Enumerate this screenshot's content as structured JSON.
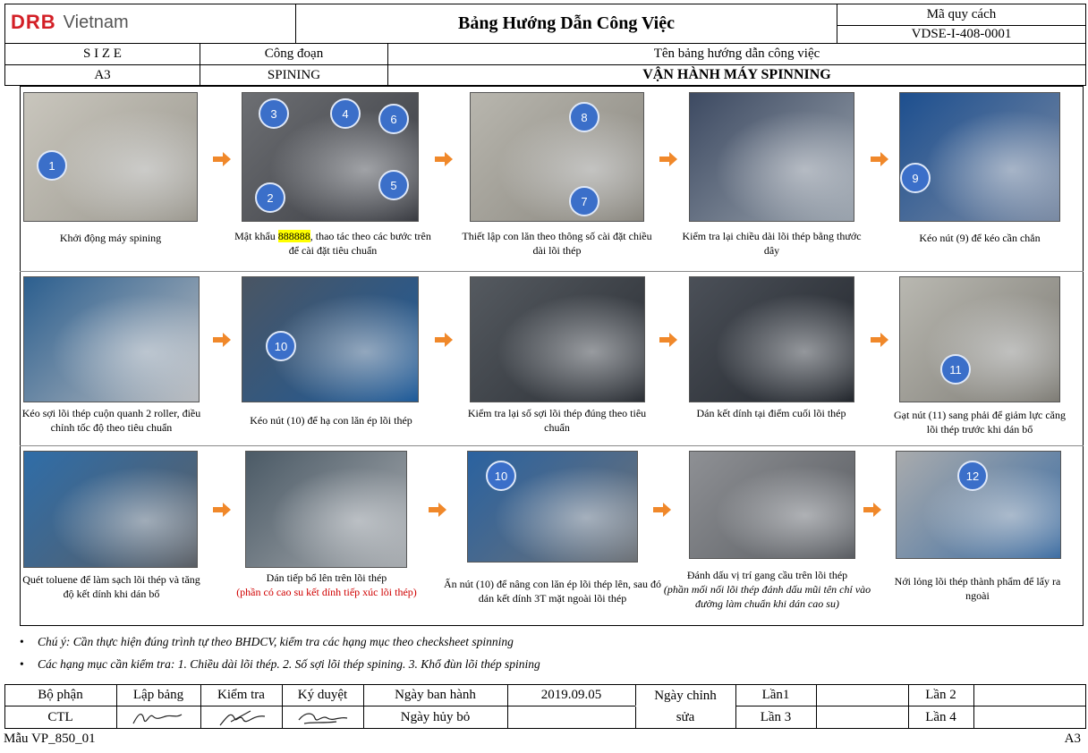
{
  "header": {
    "logo_brand": "DRB",
    "logo_text": "Vietnam",
    "title": "Bảng Hướng Dẫn Công Việc",
    "spec_code_label": "Mã quy cách",
    "spec_code_value": "VDSE-I-408-0001",
    "size_label": "S I Z E",
    "size_value": "A3",
    "process_label": "Công đoạn",
    "process_value": "SPINING",
    "guide_name_label": "Tên bảng hướng dẫn công việc",
    "guide_name_value": "VẬN HÀNH MÁY SPINNING"
  },
  "steps": [
    {
      "caption": "Khởi động máy spining",
      "badges": [
        "1"
      ]
    },
    {
      "caption_pre": "Mật khẩu ",
      "caption_hl": "888888",
      "caption_post": ", thao tác theo các bước trên để cài đặt tiêu chuẩn",
      "badges": [
        "3",
        "4",
        "6",
        "2",
        "5"
      ]
    },
    {
      "caption": "Thiết lập con lăn theo thông số cài đặt chiều dài lõi thép",
      "badges": [
        "8",
        "7"
      ]
    },
    {
      "caption": "Kiểm tra lại chiều dài lõi thép bằng thước dây",
      "badges": []
    },
    {
      "caption": "Kéo nút (9) để kéo cần chắn",
      "badges": [
        "9"
      ]
    },
    {
      "caption": "Kéo sợi lõi thép cuộn quanh 2 roller, điều chỉnh tốc độ theo tiêu chuẩn",
      "badges": []
    },
    {
      "caption": "Kéo nút (10) để hạ con lăn ép lõi thép",
      "badges": [
        "10"
      ]
    },
    {
      "caption": "Kiểm tra lại số sợi lõi thép đúng theo tiêu chuẩn",
      "badges": []
    },
    {
      "caption": "Dán kết dính tại điểm cuối lõi thép",
      "badges": []
    },
    {
      "caption": "Gạt nút (11) sang phải để giảm lực căng lõi thép trước khi dán bổ",
      "badges": [
        "11"
      ]
    },
    {
      "caption": "Quét toluene để làm sạch lõi thép và tăng độ kết dính khi dán bổ",
      "badges": []
    },
    {
      "caption": "Dán tiếp bổ lên trên lõi thép",
      "caption_red": "(phần có cao su kết dính tiếp xúc lõi thép)",
      "badges": []
    },
    {
      "caption": "Ấn nút (10) để nâng con lăn ép lõi thép lên, sau đó dán kết dính 3T mặt ngoài lõi thép",
      "badges": [
        "10"
      ]
    },
    {
      "caption": "Đánh dấu vị trí gang cầu trên lõi thép",
      "caption_italic": "(phần mối nối lõi thép đánh dấu mũi tên chỉ vào đường làm chuẩn khi dán cao su)",
      "badges": []
    },
    {
      "caption": "Nới lỏng lõi thép thành phẩm để lấy ra ngoài",
      "badges": [
        "12"
      ]
    }
  ],
  "notes": [
    "Chú ý: Cần thực hiện đúng trình tự theo BHDCV, kiểm tra các hạng mục theo checksheet spinning",
    "Các hạng mục cần kiểm tra: 1. Chiều dài lõi thép. 2. Số sợi lõi thép spining. 3. Khổ đùn lõi thép spining"
  ],
  "footer": {
    "dept_label": "Bộ phận",
    "dept_value": "CTL",
    "prepared_label": "Lập bảng",
    "checked_label": "Kiểm tra",
    "approved_label": "Ký duyệt",
    "issue_date_label": "Ngày ban hành",
    "issue_date_value": "2019.09.05",
    "cancel_date_label": "Ngày hủy bỏ",
    "revision_label_1": "Ngày chỉnh",
    "revision_label_2": "sửa",
    "rev1": "Lần1",
    "rev2": "Lần 2",
    "rev3": "Lần 3",
    "rev4": "Lần 4",
    "form_code": "Mẫu VP_850_01",
    "page_size": "A3"
  },
  "colors": {
    "brand_red": "#d31f26",
    "badge_blue": "#3b6fc9",
    "arrow_orange": "#f0882a",
    "highlight": "#ffff00"
  }
}
